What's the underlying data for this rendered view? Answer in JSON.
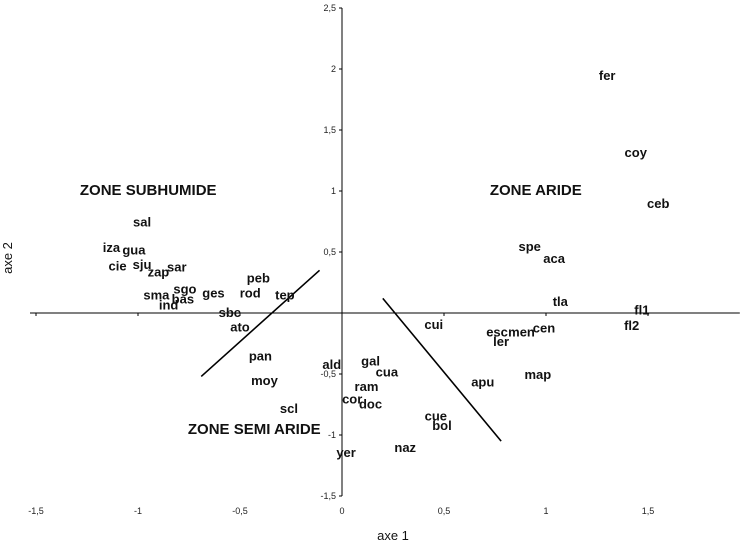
{
  "chart_data": {
    "type": "scatter",
    "xlabel": "axe 1",
    "ylabel": "axe 2",
    "xlim": [
      -1.5,
      1.95
    ],
    "ylim": [
      -1.5,
      2.5
    ],
    "xticks": [
      {
        "v": -1.5,
        "label": "-1,5"
      },
      {
        "v": -1,
        "label": "-1"
      },
      {
        "v": -0.5,
        "label": "-0,5"
      },
      {
        "v": 0,
        "label": "0"
      },
      {
        "v": 0.5,
        "label": "0,5"
      },
      {
        "v": 1,
        "label": "1"
      },
      {
        "v": 1.5,
        "label": "1,5"
      }
    ],
    "yticks": [
      {
        "v": 2.5,
        "label": "2,5"
      },
      {
        "v": 2,
        "label": "2"
      },
      {
        "v": 1.5,
        "label": "1,5"
      },
      {
        "v": 1,
        "label": "1"
      },
      {
        "v": 0.5,
        "label": "0,5"
      },
      {
        "v": -0.5,
        "label": "-0,5"
      },
      {
        "v": -1,
        "label": "-1"
      },
      {
        "v": -1.5,
        "label": "-1,5"
      }
    ],
    "points": [
      {
        "label": "fer",
        "x": 1.3,
        "y": 1.95
      },
      {
        "label": "coy",
        "x": 1.44,
        "y": 1.32
      },
      {
        "label": "ceb",
        "x": 1.55,
        "y": 0.9
      },
      {
        "label": "spe",
        "x": 0.92,
        "y": 0.55
      },
      {
        "label": "aca",
        "x": 1.04,
        "y": 0.45
      },
      {
        "label": "tla",
        "x": 1.07,
        "y": 0.1
      },
      {
        "label": "fl1",
        "x": 1.47,
        "y": 0.03
      },
      {
        "label": "fl2",
        "x": 1.42,
        "y": -0.1
      },
      {
        "label": "cen",
        "x": 0.99,
        "y": -0.12
      },
      {
        "label": "esc",
        "x": 0.76,
        "y": -0.15
      },
      {
        "label": "men",
        "x": 0.88,
        "y": -0.15
      },
      {
        "label": "ler",
        "x": 0.78,
        "y": -0.23
      },
      {
        "label": "cui",
        "x": 0.45,
        "y": -0.09
      },
      {
        "label": "apu",
        "x": 0.69,
        "y": -0.56
      },
      {
        "label": "map",
        "x": 0.96,
        "y": -0.5
      },
      {
        "label": "sal",
        "x": -0.98,
        "y": 0.75
      },
      {
        "label": "iza",
        "x": -1.13,
        "y": 0.54
      },
      {
        "label": "gua",
        "x": -1.02,
        "y": 0.52
      },
      {
        "label": "cie",
        "x": -1.1,
        "y": 0.39
      },
      {
        "label": "sju",
        "x": -0.98,
        "y": 0.4
      },
      {
        "label": "sar",
        "x": -0.81,
        "y": 0.38
      },
      {
        "label": "zap",
        "x": -0.9,
        "y": 0.34
      },
      {
        "label": "peb",
        "x": -0.41,
        "y": 0.29
      },
      {
        "label": "sgo",
        "x": -0.77,
        "y": 0.2
      },
      {
        "label": "ges",
        "x": -0.63,
        "y": 0.17
      },
      {
        "label": "rod",
        "x": -0.45,
        "y": 0.17
      },
      {
        "label": "tep",
        "x": -0.28,
        "y": 0.15
      },
      {
        "label": "sma",
        "x": -0.91,
        "y": 0.15
      },
      {
        "label": "bas",
        "x": -0.78,
        "y": 0.12
      },
      {
        "label": "ind",
        "x": -0.85,
        "y": 0.07
      },
      {
        "label": "sbe",
        "x": -0.55,
        "y": 0.01
      },
      {
        "label": "ato",
        "x": -0.5,
        "y": -0.11
      },
      {
        "label": "pan",
        "x": -0.4,
        "y": -0.35
      },
      {
        "label": "moy",
        "x": -0.38,
        "y": -0.55
      },
      {
        "label": "scl",
        "x": -0.26,
        "y": -0.78
      },
      {
        "label": "ald",
        "x": -0.05,
        "y": -0.42
      },
      {
        "label": "gal",
        "x": 0.14,
        "y": -0.39
      },
      {
        "label": "cua",
        "x": 0.22,
        "y": -0.48
      },
      {
        "label": "ram",
        "x": 0.12,
        "y": -0.6
      },
      {
        "label": "cor",
        "x": 0.05,
        "y": -0.7
      },
      {
        "label": "doc",
        "x": 0.14,
        "y": -0.74
      },
      {
        "label": "cue",
        "x": 0.46,
        "y": -0.84
      },
      {
        "label": "bol",
        "x": 0.49,
        "y": -0.92
      },
      {
        "label": "naz",
        "x": 0.31,
        "y": -1.1
      },
      {
        "label": "yer",
        "x": 0.02,
        "y": -1.14
      }
    ],
    "annotations": [
      {
        "text": "ZONE SUBHUMIDE",
        "x": -0.95,
        "y": 1.01
      },
      {
        "text": "ZONE ARIDE",
        "x": 0.95,
        "y": 1.01
      },
      {
        "text": "ZONE SEMI ARIDE",
        "x": -0.43,
        "y": -0.95
      }
    ],
    "separator_lines": [
      {
        "x1": -0.69,
        "y1": -0.52,
        "x2": -0.11,
        "y2": 0.35
      },
      {
        "x1": 0.2,
        "y1": 0.12,
        "x2": 0.78,
        "y2": -1.05
      }
    ]
  }
}
